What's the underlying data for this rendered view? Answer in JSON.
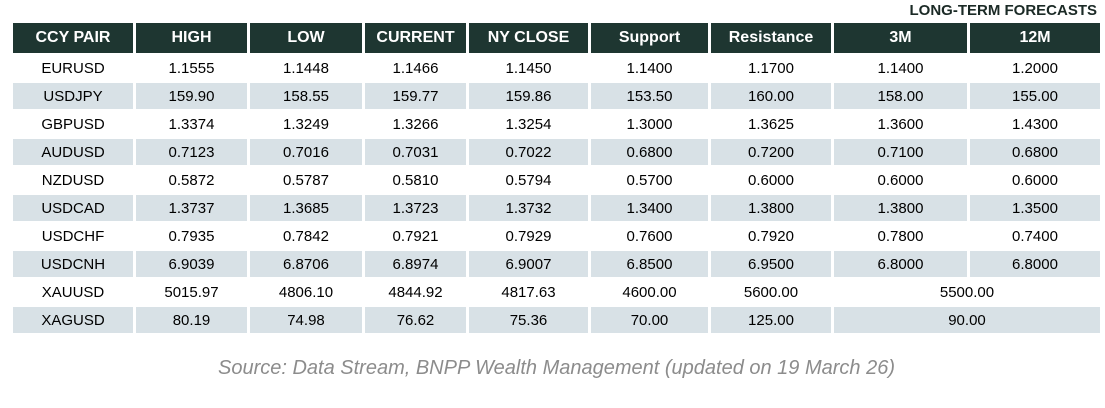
{
  "chart_data": {
    "type": "table",
    "column_group": {
      "label": "LONG-TERM FORECASTS",
      "applies_to": [
        "3M",
        "12M"
      ]
    },
    "columns": [
      "CCY PAIR",
      "HIGH",
      "LOW",
      "CURRENT",
      "NY CLOSE",
      "Support",
      "Resistance",
      "3M",
      "12M"
    ],
    "rows": [
      {
        "cells": [
          "EURUSD",
          "1.1555",
          "1.1448",
          "1.1466",
          "1.1450",
          "1.1400",
          "1.1700",
          "1.1400",
          "1.2000"
        ]
      },
      {
        "cells": [
          "USDJPY",
          "159.90",
          "158.55",
          "159.77",
          "159.86",
          "153.50",
          "160.00",
          "158.00",
          "155.00"
        ]
      },
      {
        "cells": [
          "GBPUSD",
          "1.3374",
          "1.3249",
          "1.3266",
          "1.3254",
          "1.3000",
          "1.3625",
          "1.3600",
          "1.4300"
        ]
      },
      {
        "cells": [
          "AUDUSD",
          "0.7123",
          "0.7016",
          "0.7031",
          "0.7022",
          "0.6800",
          "0.7200",
          "0.7100",
          "0.6800"
        ]
      },
      {
        "cells": [
          "NZDUSD",
          "0.5872",
          "0.5787",
          "0.5810",
          "0.5794",
          "0.5700",
          "0.6000",
          "0.6000",
          "0.6000"
        ]
      },
      {
        "cells": [
          "USDCAD",
          "1.3737",
          "1.3685",
          "1.3723",
          "1.3732",
          "1.3400",
          "1.3800",
          "1.3800",
          "1.3500"
        ]
      },
      {
        "cells": [
          "USDCHF",
          "0.7935",
          "0.7842",
          "0.7921",
          "0.7929",
          "0.7600",
          "0.7920",
          "0.7800",
          "0.7400"
        ]
      },
      {
        "cells": [
          "USDCNH",
          "6.9039",
          "6.8706",
          "6.8974",
          "6.9007",
          "6.8500",
          "6.9500",
          "6.8000",
          "6.8000"
        ]
      },
      {
        "cells": [
          "XAUUSD",
          "5015.97",
          "4806.10",
          "4844.92",
          "4817.63",
          "4600.00",
          "5600.00"
        ],
        "merged_forecast": "5500.00"
      },
      {
        "cells": [
          "XAGUSD",
          "80.19",
          "74.98",
          "76.62",
          "75.36",
          "70.00",
          "125.00"
        ],
        "merged_forecast": "90.00"
      }
    ],
    "source": "Source: Data Stream, BNPP Wealth Management (updated on 19 March 26)"
  },
  "colors": {
    "header_bg": "#1e3631",
    "header_text": "#ffffff",
    "row_bg": "#ffffff",
    "alt_row_bg": "#d8e1e6",
    "body_text": "#000000",
    "label_text": "#1b2a26",
    "source_text": "#8c8c8c"
  }
}
